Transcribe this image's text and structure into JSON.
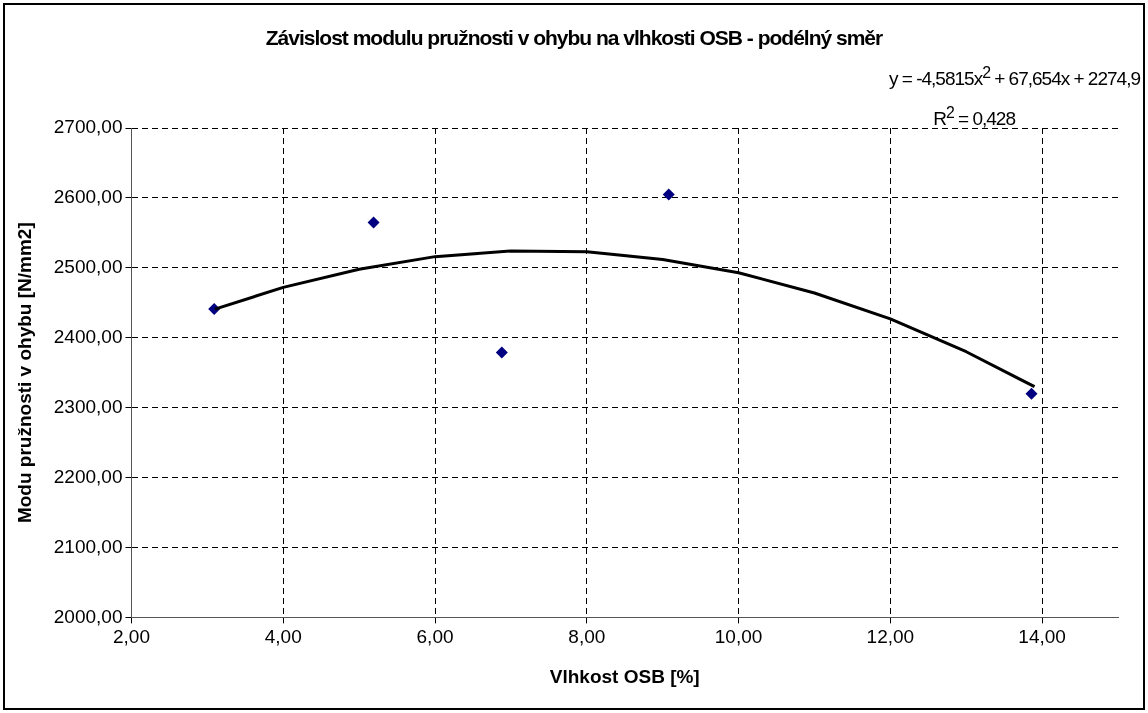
{
  "chart_data": {
    "type": "scatter",
    "title": "Závislost modulu pružnosti v ohybu na vlhkosti OSB - podélný směr",
    "xlabel": "Vlhkost OSB [%]",
    "ylabel": "Modu pružnosti v ohybu [N/mm2]",
    "annotations": [
      "y = -4,5815x$^{2}$ + 67,654x + 2274,9",
      "R$^{2}$ = 0,428"
    ],
    "series": [
      {
        "color": "#000080",
        "marker": "diamond",
        "x": [
          3.09,
          5.19,
          6.88,
          9.08,
          13.86
        ],
        "values": [
          2441,
          2565,
          2379,
          2605,
          2320
        ]
      },
      {
        "type": "line",
        "color": "#000000",
        "marker": "none",
        "x": [
          3.1,
          4,
          5,
          6,
          7,
          8,
          9,
          10,
          11,
          12,
          13,
          13.9
        ],
        "values": [
          2441,
          2472,
          2498,
          2516,
          2524,
          2523,
          2512,
          2493,
          2464,
          2427,
          2380,
          2330
        ]
      }
    ],
    "xlim": [
      2,
      15
    ],
    "xticks": [
      {
        "value": 2,
        "label": "2,00"
      },
      {
        "value": 4,
        "label": "4,00"
      },
      {
        "value": 6,
        "label": "6,00"
      },
      {
        "value": 8,
        "label": "8,00"
      },
      {
        "value": 10,
        "label": "10,00"
      },
      {
        "value": 12,
        "label": "12,00"
      },
      {
        "value": 14,
        "label": "14,00"
      }
    ],
    "ylim": [
      2000,
      2700
    ],
    "yticks": [
      {
        "value": 2000,
        "label": "2000,00"
      },
      {
        "value": 2100,
        "label": "2100,00"
      },
      {
        "value": 2200,
        "label": "2200,00"
      },
      {
        "value": 2300,
        "label": "2300,00"
      },
      {
        "value": 2400,
        "label": "2400,00"
      },
      {
        "value": 2500,
        "label": "2500,00"
      },
      {
        "value": 2600,
        "label": "2600,00"
      },
      {
        "value": 2700,
        "label": "2700,00"
      }
    ],
    "grid": true,
    "legend": false
  }
}
